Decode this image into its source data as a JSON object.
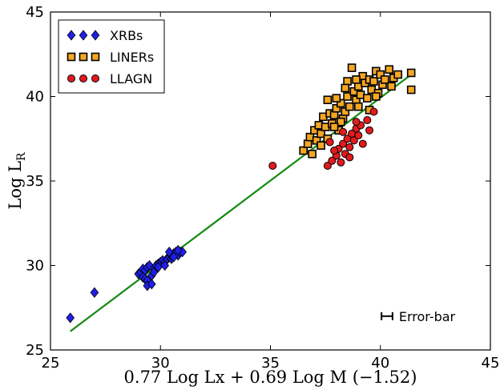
{
  "chart_data": {
    "type": "scatter",
    "xlabel": "0.77 Log Lx + 0.69 Log M (−1.52)",
    "ylabel": "Log L",
    "ylabel_sub": "R",
    "xlim": [
      25,
      45
    ],
    "ylim": [
      25,
      45
    ],
    "xticks": [
      25,
      30,
      35,
      40,
      45
    ],
    "yticks": [
      25,
      30,
      35,
      40,
      45
    ],
    "grid": false,
    "legend_position": "top-left",
    "series": [
      {
        "name": "XRBs",
        "marker": "diamond",
        "color": "#1f1fe8",
        "points": [
          [
            25.9,
            26.9
          ],
          [
            27.0,
            28.4
          ],
          [
            29.0,
            29.5
          ],
          [
            29.1,
            29.6
          ],
          [
            29.2,
            29.8
          ],
          [
            29.3,
            29.7
          ],
          [
            29.4,
            29.9
          ],
          [
            29.5,
            30.0
          ],
          [
            29.2,
            29.3
          ],
          [
            29.3,
            29.2
          ],
          [
            29.4,
            29.1
          ],
          [
            29.4,
            28.8
          ],
          [
            29.6,
            28.9
          ],
          [
            29.6,
            29.4
          ],
          [
            29.7,
            29.8
          ],
          [
            29.8,
            30.0
          ],
          [
            29.9,
            30.1
          ],
          [
            30.0,
            30.2
          ],
          [
            30.1,
            30.3
          ],
          [
            30.2,
            30.2
          ],
          [
            30.3,
            30.4
          ],
          [
            30.4,
            30.5
          ],
          [
            30.5,
            30.4
          ],
          [
            30.5,
            30.6
          ],
          [
            30.6,
            30.7
          ],
          [
            30.7,
            30.8
          ],
          [
            30.8,
            30.6
          ],
          [
            30.9,
            30.8
          ],
          [
            31.0,
            30.8
          ],
          [
            30.4,
            30.8
          ],
          [
            30.6,
            30.5
          ],
          [
            30.2,
            30.0
          ],
          [
            29.9,
            29.9
          ],
          [
            29.7,
            29.6
          ],
          [
            30.8,
            30.9
          ]
        ]
      },
      {
        "name": "LINERs",
        "marker": "square",
        "color": "#f5a623",
        "points": [
          [
            36.5,
            36.8
          ],
          [
            36.7,
            37.2
          ],
          [
            36.8,
            37.6
          ],
          [
            37.0,
            38.0
          ],
          [
            37.1,
            37.4
          ],
          [
            37.2,
            38.3
          ],
          [
            37.3,
            37.8
          ],
          [
            37.4,
            38.8
          ],
          [
            37.5,
            38.2
          ],
          [
            37.6,
            37.5
          ],
          [
            37.7,
            39.0
          ],
          [
            37.8,
            38.4
          ],
          [
            37.9,
            38.9
          ],
          [
            38.0,
            39.3
          ],
          [
            38.1,
            38.0
          ],
          [
            38.2,
            39.6
          ],
          [
            38.3,
            38.7
          ],
          [
            38.4,
            39.1
          ],
          [
            38.5,
            40.0
          ],
          [
            38.6,
            39.4
          ],
          [
            38.7,
            41.7
          ],
          [
            38.8,
            40.3
          ],
          [
            38.9,
            39.8
          ],
          [
            39.0,
            40.6
          ],
          [
            39.1,
            40.1
          ],
          [
            39.2,
            41.2
          ],
          [
            39.3,
            40.8
          ],
          [
            39.4,
            39.9
          ],
          [
            39.5,
            41.0
          ],
          [
            39.6,
            40.4
          ],
          [
            39.7,
            40.9
          ],
          [
            39.8,
            41.5
          ],
          [
            39.9,
            40.2
          ],
          [
            40.0,
            41.3
          ],
          [
            40.1,
            40.7
          ],
          [
            40.2,
            41.0
          ],
          [
            40.4,
            41.6
          ],
          [
            40.6,
            41.1
          ],
          [
            40.8,
            41.3
          ],
          [
            41.4,
            41.4
          ],
          [
            41.4,
            40.4
          ],
          [
            40.5,
            40.6
          ],
          [
            38.0,
            39.9
          ],
          [
            38.5,
            40.9
          ],
          [
            37.6,
            39.8
          ],
          [
            38.2,
            38.5
          ],
          [
            39.0,
            39.4
          ],
          [
            39.5,
            39.2
          ],
          [
            36.9,
            36.6
          ],
          [
            37.3,
            37.1
          ],
          [
            38.9,
            41.0
          ],
          [
            39.8,
            40.0
          ],
          [
            37.9,
            38.2
          ],
          [
            38.4,
            40.5
          ]
        ]
      },
      {
        "name": "LLAGN",
        "marker": "circle",
        "color": "#e31a1c",
        "points": [
          [
            35.1,
            35.9
          ],
          [
            37.6,
            35.9
          ],
          [
            37.8,
            36.2
          ],
          [
            38.0,
            36.5
          ],
          [
            38.1,
            36.9
          ],
          [
            38.3,
            37.2
          ],
          [
            38.4,
            36.6
          ],
          [
            38.5,
            37.5
          ],
          [
            38.6,
            37.0
          ],
          [
            38.7,
            37.8
          ],
          [
            38.8,
            37.4
          ],
          [
            38.9,
            38.1
          ],
          [
            39.0,
            37.7
          ],
          [
            39.1,
            38.3
          ],
          [
            39.2,
            37.2
          ],
          [
            38.2,
            36.1
          ],
          [
            37.9,
            36.8
          ],
          [
            38.6,
            36.4
          ],
          [
            39.4,
            38.6
          ],
          [
            39.5,
            38.0
          ],
          [
            39.7,
            39.1
          ],
          [
            38.9,
            38.5
          ],
          [
            38.3,
            37.9
          ],
          [
            37.7,
            37.3
          ]
        ]
      }
    ],
    "fit_line": {
      "name": "",
      "color": "#118a11",
      "x": [
        25.9,
        41.4
      ],
      "y": [
        26.1,
        41.3
      ]
    },
    "annotation": {
      "label": "Error-bar",
      "x": 40.3,
      "y": 27.0,
      "half_width": 0.25
    }
  }
}
